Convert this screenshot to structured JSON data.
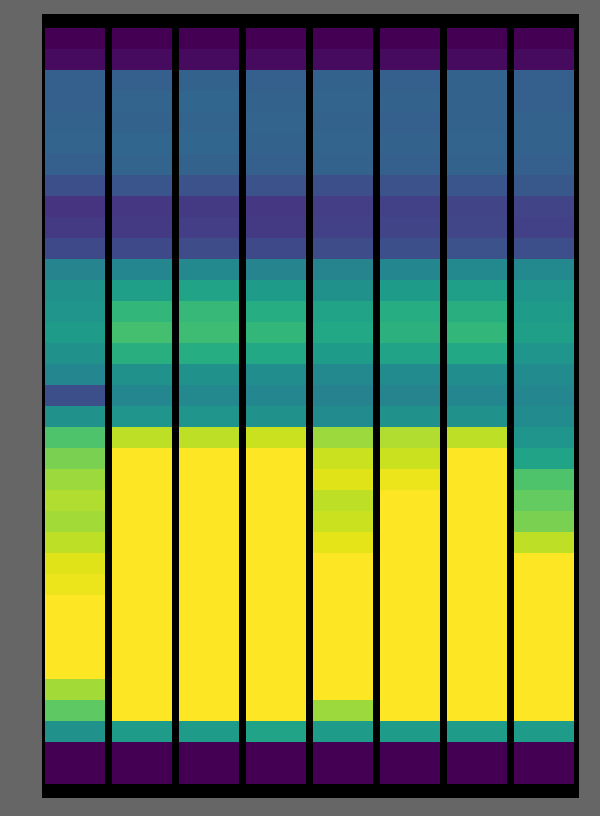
{
  "chart_data": {
    "type": "heatmap",
    "tick_labels": false,
    "color": "viridis",
    "zlim": [
      0,
      1
    ],
    "cells": [
      [
        0,
        0.03,
        0.3,
        0.3,
        0.31,
        0.32,
        0.3,
        0.24,
        0.15,
        0.17,
        0.22,
        0.45,
        0.5,
        0.52,
        0.55,
        0.5,
        0.46,
        0.24,
        0.5,
        0.72,
        0.8,
        0.85,
        0.88,
        0.86,
        0.9,
        0.95,
        0.97,
        1,
        1,
        1,
        1,
        0.86,
        0.75,
        0.5,
        0,
        0
      ],
      [
        0,
        0.03,
        0.3,
        0.32,
        0.31,
        0.33,
        0.32,
        0.26,
        0.16,
        0.17,
        0.22,
        0.46,
        0.56,
        0.66,
        0.7,
        0.63,
        0.5,
        0.46,
        0.52,
        0.9,
        1,
        1,
        1,
        1,
        1,
        1,
        1,
        1,
        1,
        1,
        1,
        1,
        1,
        0.55,
        0,
        0
      ],
      [
        0,
        0.03,
        0.31,
        0.33,
        0.32,
        0.33,
        0.31,
        0.25,
        0.17,
        0.18,
        0.23,
        0.47,
        0.58,
        0.67,
        0.69,
        0.62,
        0.5,
        0.47,
        0.52,
        0.9,
        1,
        1,
        1,
        1,
        1,
        1,
        1,
        1,
        1,
        1,
        1,
        1,
        1,
        0.55,
        0,
        0
      ],
      [
        0,
        0.03,
        0.3,
        0.31,
        0.32,
        0.31,
        0.3,
        0.25,
        0.16,
        0.17,
        0.22,
        0.45,
        0.55,
        0.62,
        0.66,
        0.6,
        0.49,
        0.46,
        0.5,
        0.92,
        1,
        1,
        1,
        1,
        1,
        1,
        1,
        1,
        1,
        1,
        1,
        1,
        1,
        0.58,
        0,
        0
      ],
      [
        0,
        0.03,
        0.31,
        0.32,
        0.31,
        0.32,
        0.31,
        0.24,
        0.18,
        0.19,
        0.23,
        0.45,
        0.5,
        0.58,
        0.6,
        0.55,
        0.47,
        0.44,
        0.48,
        0.85,
        0.92,
        0.95,
        0.9,
        0.92,
        0.96,
        1,
        1,
        1,
        1,
        1,
        1,
        1,
        0.85,
        0.55,
        0,
        0
      ],
      [
        0,
        0.03,
        0.3,
        0.31,
        0.3,
        0.31,
        0.3,
        0.25,
        0.19,
        0.2,
        0.24,
        0.46,
        0.55,
        0.62,
        0.64,
        0.58,
        0.48,
        0.45,
        0.5,
        0.88,
        0.92,
        0.97,
        1,
        1,
        1,
        1,
        1,
        1,
        1,
        1,
        1,
        1,
        1,
        0.55,
        0,
        0
      ],
      [
        0,
        0.03,
        0.31,
        0.31,
        0.31,
        0.32,
        0.31,
        0.26,
        0.2,
        0.21,
        0.25,
        0.47,
        0.56,
        0.63,
        0.66,
        0.6,
        0.49,
        0.46,
        0.5,
        0.9,
        1,
        1,
        1,
        1,
        1,
        1,
        1,
        1,
        1,
        1,
        1,
        1,
        1,
        0.55,
        0,
        0
      ],
      [
        0,
        0.03,
        0.3,
        0.3,
        0.31,
        0.31,
        0.3,
        0.27,
        0.2,
        0.19,
        0.24,
        0.47,
        0.52,
        0.55,
        0.56,
        0.52,
        0.48,
        0.46,
        0.48,
        0.52,
        0.58,
        0.72,
        0.76,
        0.8,
        0.9,
        1,
        1,
        1,
        1,
        1,
        1,
        1,
        1,
        0.55,
        0,
        0
      ]
    ]
  }
}
